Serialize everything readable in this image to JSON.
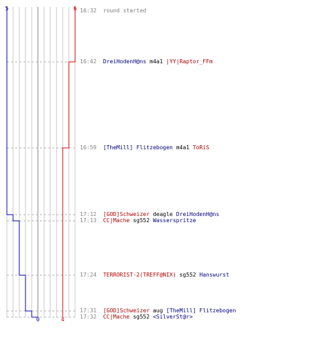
{
  "chart_data": {
    "type": "line",
    "series": [
      {
        "team": "blue",
        "start_label": "5",
        "end_label": "0",
        "color": "#0000b0",
        "steps": [
          {
            "time": "16:32",
            "count": 5
          },
          {
            "time": "17:12",
            "count": 4
          },
          {
            "time": "17:13",
            "count": 3
          },
          {
            "time": "17:24",
            "count": 2
          },
          {
            "time": "17:31",
            "count": 1
          },
          {
            "time": "17:32",
            "count": 0
          }
        ]
      },
      {
        "team": "red",
        "start_label": "6",
        "end_label": "4",
        "color": "#d00000",
        "steps": [
          {
            "time": "16:32",
            "count": 6
          },
          {
            "time": "16:42",
            "count": 5
          },
          {
            "time": "16:59",
            "count": 4
          }
        ]
      }
    ],
    "grid": true
  },
  "events": [
    {
      "time": "16:32",
      "parts": [
        {
          "text": "round started",
          "cls": "gray"
        }
      ]
    },
    {
      "time": "16:42",
      "parts": [
        {
          "text": "DreiHodenH@ns",
          "cls": "blue"
        },
        {
          "text": " m4a1 ",
          "cls": "k"
        },
        {
          "text": "|YY|Raptor_FFm",
          "cls": "red"
        }
      ]
    },
    {
      "time": "16:59",
      "parts": [
        {
          "text": "[TheMill] Flitzebogen",
          "cls": "blue"
        },
        {
          "text": " m4a1 ",
          "cls": "k"
        },
        {
          "text": "ToRiS",
          "cls": "red"
        }
      ]
    },
    {
      "time": "17:12",
      "parts": [
        {
          "text": "[GOD]Schweizer",
          "cls": "red"
        },
        {
          "text": " deagle ",
          "cls": "k"
        },
        {
          "text": "DreiHodenH@ns",
          "cls": "blue"
        }
      ]
    },
    {
      "time": "17:13",
      "parts": [
        {
          "text": "CC|Mache",
          "cls": "red"
        },
        {
          "text": " sg552 ",
          "cls": "k"
        },
        {
          "text": "Wasserspritze",
          "cls": "blue"
        }
      ]
    },
    {
      "time": "17:24",
      "parts": [
        {
          "text": "TERRORIST-2(TREFF@NIX)",
          "cls": "red"
        },
        {
          "text": " sg552 ",
          "cls": "k"
        },
        {
          "text": "Hanswurst",
          "cls": "blue"
        }
      ]
    },
    {
      "time": "17:31",
      "parts": [
        {
          "text": "[GOD]Schweizer",
          "cls": "red"
        },
        {
          "text": " aug ",
          "cls": "k"
        },
        {
          "text": "[TheMill] Flitzebogen",
          "cls": "blue"
        }
      ]
    },
    {
      "time": "17:32",
      "parts": [
        {
          "text": "CC|Mache",
          "cls": "red"
        },
        {
          "text": " sg552 ",
          "cls": "k"
        },
        {
          "text": "<SilverSt@r>",
          "cls": "blue"
        }
      ]
    }
  ]
}
